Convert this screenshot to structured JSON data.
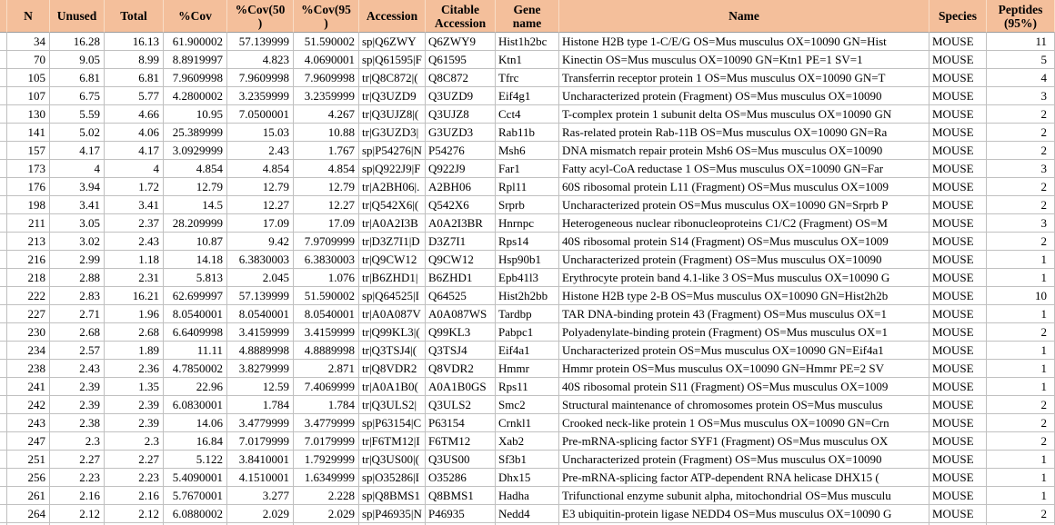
{
  "app": {
    "description_title": "Protein identification results spreadsheet",
    "species_value": "MOUSE"
  },
  "colors": {
    "header_bg": "#f4bf9b",
    "grid_line": "#c0c0c0",
    "header_underline": "#9c9c9c",
    "cell_bg": "#ffffff",
    "text": "#000000"
  },
  "table": {
    "columns": [
      {
        "key": "spacer",
        "label": "",
        "align": "left"
      },
      {
        "key": "n",
        "label": "N",
        "align": "right"
      },
      {
        "key": "unused",
        "label": "Unused",
        "align": "right"
      },
      {
        "key": "total",
        "label": "Total",
        "align": "right"
      },
      {
        "key": "cov",
        "label": "%Cov",
        "align": "right"
      },
      {
        "key": "cov50",
        "label": "%Cov(50\n)",
        "align": "right"
      },
      {
        "key": "cov95",
        "label": "%Cov(95\n)",
        "align": "right"
      },
      {
        "key": "accession",
        "label": "Accession",
        "align": "left"
      },
      {
        "key": "citable",
        "label": "Citable\nAccession",
        "align": "left"
      },
      {
        "key": "gene",
        "label": "Gene\nname",
        "align": "left"
      },
      {
        "key": "name",
        "label": "Name",
        "align": "left"
      },
      {
        "key": "species",
        "label": "Species",
        "align": "left"
      },
      {
        "key": "peptides",
        "label": "Peptides\n(95%)",
        "align": "right"
      }
    ],
    "rows": [
      {
        "n": "34",
        "unused": "16.28",
        "total": "16.13",
        "cov": "61.900002",
        "cov50": "57.139999",
        "cov95": "51.590002",
        "accession": "sp|Q6ZWY",
        "citable": "Q6ZWY9",
        "gene": "Hist1h2bc",
        "name": "Histone H2B type 1-C/E/G OS=Mus musculus OX=10090 GN=Hist",
        "species": "MOUSE",
        "peptides": "11"
      },
      {
        "n": "70",
        "unused": "9.05",
        "total": "8.99",
        "cov": "8.8919997",
        "cov50": "4.823",
        "cov95": "4.0690001",
        "accession": "sp|Q61595|F",
        "citable": "Q61595",
        "gene": "Ktn1",
        "name": "Kinectin OS=Mus musculus OX=10090 GN=Ktn1 PE=1 SV=1",
        "species": "MOUSE",
        "peptides": "5"
      },
      {
        "n": "105",
        "unused": "6.81",
        "total": "6.81",
        "cov": "7.9609998",
        "cov50": "7.9609998",
        "cov95": "7.9609998",
        "accession": "tr|Q8C872|(",
        "citable": "Q8C872",
        "gene": "Tfrc",
        "name": "Transferrin receptor protein 1 OS=Mus musculus OX=10090 GN=T",
        "species": "MOUSE",
        "peptides": "4"
      },
      {
        "n": "107",
        "unused": "6.75",
        "total": "5.77",
        "cov": "4.2800002",
        "cov50": "3.2359999",
        "cov95": "3.2359999",
        "accession": "tr|Q3UZD9",
        "citable": "Q3UZD9",
        "gene": "Eif4g1",
        "name": "Uncharacterized protein (Fragment) OS=Mus musculus OX=10090",
        "species": "MOUSE",
        "peptides": "3"
      },
      {
        "n": "130",
        "unused": "5.59",
        "total": "4.66",
        "cov": "10.95",
        "cov50": "7.0500001",
        "cov95": "4.267",
        "accession": "tr|Q3UJZ8|(",
        "citable": "Q3UJZ8",
        "gene": "Cct4",
        "name": "T-complex protein 1 subunit delta OS=Mus musculus OX=10090 GN",
        "species": "MOUSE",
        "peptides": "2"
      },
      {
        "n": "141",
        "unused": "5.02",
        "total": "4.06",
        "cov": "25.389999",
        "cov50": "15.03",
        "cov95": "10.88",
        "accession": "tr|G3UZD3|",
        "citable": "G3UZD3",
        "gene": "Rab11b",
        "name": "Ras-related protein Rab-11B OS=Mus musculus OX=10090 GN=Ra",
        "species": "MOUSE",
        "peptides": "2"
      },
      {
        "n": "157",
        "unused": "4.17",
        "total": "4.17",
        "cov": "3.0929999",
        "cov50": "2.43",
        "cov95": "1.767",
        "accession": "sp|P54276|N",
        "citable": "P54276",
        "gene": "Msh6",
        "name": "DNA mismatch repair protein Msh6 OS=Mus musculus OX=10090",
        "species": "MOUSE",
        "peptides": "2"
      },
      {
        "n": "173",
        "unused": "4",
        "total": "4",
        "cov": "4.854",
        "cov50": "4.854",
        "cov95": "4.854",
        "accession": "sp|Q922J9|F",
        "citable": "Q922J9",
        "gene": "Far1",
        "name": "Fatty acyl-CoA reductase 1 OS=Mus musculus OX=10090 GN=Far",
        "species": "MOUSE",
        "peptides": "3"
      },
      {
        "n": "176",
        "unused": "3.94",
        "total": "1.72",
        "cov": "12.79",
        "cov50": "12.79",
        "cov95": "12.79",
        "accession": "tr|A2BH06|.",
        "citable": "A2BH06",
        "gene": "Rpl11",
        "name": "60S ribosomal protein L11 (Fragment) OS=Mus musculus OX=1009",
        "species": "MOUSE",
        "peptides": "2"
      },
      {
        "n": "198",
        "unused": "3.41",
        "total": "3.41",
        "cov": "14.5",
        "cov50": "12.27",
        "cov95": "12.27",
        "accession": "tr|Q542X6|(",
        "citable": "Q542X6",
        "gene": "Srprb",
        "name": "Uncharacterized protein OS=Mus musculus OX=10090 GN=Srprb P",
        "species": "MOUSE",
        "peptides": "2"
      },
      {
        "n": "211",
        "unused": "3.05",
        "total": "2.37",
        "cov": "28.209999",
        "cov50": "17.09",
        "cov95": "17.09",
        "accession": "tr|A0A2I3B",
        "citable": "A0A2I3BR",
        "gene": "Hnrnpc",
        "name": "Heterogeneous nuclear ribonucleoproteins C1/C2 (Fragment) OS=M",
        "species": "MOUSE",
        "peptides": "3"
      },
      {
        "n": "213",
        "unused": "3.02",
        "total": "2.43",
        "cov": "10.87",
        "cov50": "9.42",
        "cov95": "7.9709999",
        "accession": "tr|D3Z7I1|D",
        "citable": "D3Z7I1",
        "gene": "Rps14",
        "name": "40S ribosomal protein S14 (Fragment) OS=Mus musculus OX=1009",
        "species": "MOUSE",
        "peptides": "2"
      },
      {
        "n": "216",
        "unused": "2.99",
        "total": "1.18",
        "cov": "14.18",
        "cov50": "6.3830003",
        "cov95": "6.3830003",
        "accession": "tr|Q9CW12",
        "citable": "Q9CW12",
        "gene": "Hsp90b1",
        "name": "Uncharacterized protein (Fragment) OS=Mus musculus OX=10090",
        "species": "MOUSE",
        "peptides": "1"
      },
      {
        "n": "218",
        "unused": "2.88",
        "total": "2.31",
        "cov": "5.813",
        "cov50": "2.045",
        "cov95": "1.076",
        "accession": "tr|B6ZHD1|",
        "citable": "B6ZHD1",
        "gene": "Epb41l3",
        "name": "Erythrocyte protein band 4.1-like 3 OS=Mus musculus OX=10090 G",
        "species": "MOUSE",
        "peptides": "1"
      },
      {
        "n": "222",
        "unused": "2.83",
        "total": "16.21",
        "cov": "62.699997",
        "cov50": "57.139999",
        "cov95": "51.590002",
        "accession": "sp|Q64525|I",
        "citable": "Q64525",
        "gene": "Hist2h2bb",
        "name": "Histone H2B type 2-B OS=Mus musculus OX=10090 GN=Hist2h2b",
        "species": "MOUSE",
        "peptides": "10"
      },
      {
        "n": "227",
        "unused": "2.71",
        "total": "1.96",
        "cov": "8.0540001",
        "cov50": "8.0540001",
        "cov95": "8.0540001",
        "accession": "tr|A0A087V",
        "citable": "A0A087WS",
        "gene": "Tardbp",
        "name": "TAR DNA-binding protein 43 (Fragment) OS=Mus musculus OX=1",
        "species": "MOUSE",
        "peptides": "1"
      },
      {
        "n": "230",
        "unused": "2.68",
        "total": "2.68",
        "cov": "6.6409998",
        "cov50": "3.4159999",
        "cov95": "3.4159999",
        "accession": "tr|Q99KL3|(",
        "citable": "Q99KL3",
        "gene": "Pabpc1",
        "name": "Polyadenylate-binding protein (Fragment) OS=Mus musculus OX=1",
        "species": "MOUSE",
        "peptides": "2"
      },
      {
        "n": "234",
        "unused": "2.57",
        "total": "1.89",
        "cov": "11.11",
        "cov50": "4.8889998",
        "cov95": "4.8889998",
        "accession": "tr|Q3TSJ4|(",
        "citable": "Q3TSJ4",
        "gene": "Eif4a1",
        "name": "Uncharacterized protein OS=Mus musculus OX=10090 GN=Eif4a1",
        "species": "MOUSE",
        "peptides": "1"
      },
      {
        "n": "238",
        "unused": "2.43",
        "total": "2.36",
        "cov": "4.7850002",
        "cov50": "3.8279999",
        "cov95": "2.871",
        "accession": "tr|Q8VDR2",
        "citable": "Q8VDR2",
        "gene": "Hmmr",
        "name": "Hmmr protein OS=Mus musculus OX=10090 GN=Hmmr PE=2 SV",
        "species": "MOUSE",
        "peptides": "1"
      },
      {
        "n": "241",
        "unused": "2.39",
        "total": "1.35",
        "cov": "22.96",
        "cov50": "12.59",
        "cov95": "7.4069999",
        "accession": "tr|A0A1B0(",
        "citable": "A0A1B0GS",
        "gene": "Rps11",
        "name": "40S ribosomal protein S11 (Fragment) OS=Mus musculus OX=1009",
        "species": "MOUSE",
        "peptides": "1"
      },
      {
        "n": "242",
        "unused": "2.39",
        "total": "2.39",
        "cov": "6.0830001",
        "cov50": "1.784",
        "cov95": "1.784",
        "accession": "tr|Q3ULS2|",
        "citable": "Q3ULS2",
        "gene": "Smc2",
        "name": "Structural maintenance of chromosomes protein OS=Mus musculus",
        "species": "MOUSE",
        "peptides": "2"
      },
      {
        "n": "243",
        "unused": "2.38",
        "total": "2.39",
        "cov": "14.06",
        "cov50": "3.4779999",
        "cov95": "3.4779999",
        "accession": "sp|P63154|C",
        "citable": "P63154",
        "gene": "Crnkl1",
        "name": "Crooked neck-like protein 1 OS=Mus musculus OX=10090 GN=Crn",
        "species": "MOUSE",
        "peptides": "2"
      },
      {
        "n": "247",
        "unused": "2.3",
        "total": "2.3",
        "cov": "16.84",
        "cov50": "7.0179999",
        "cov95": "7.0179999",
        "accession": "tr|F6TM12|I",
        "citable": "F6TM12",
        "gene": "Xab2",
        "name": "Pre-mRNA-splicing factor SYF1 (Fragment) OS=Mus musculus OX",
        "species": "MOUSE",
        "peptides": "2"
      },
      {
        "n": "251",
        "unused": "2.27",
        "total": "2.27",
        "cov": "5.122",
        "cov50": "3.8410001",
        "cov95": "1.7929999",
        "accession": "tr|Q3US00|(",
        "citable": "Q3US00",
        "gene": "Sf3b1",
        "name": "Uncharacterized protein (Fragment) OS=Mus musculus OX=10090",
        "species": "MOUSE",
        "peptides": "1"
      },
      {
        "n": "256",
        "unused": "2.23",
        "total": "2.23",
        "cov": "5.4090001",
        "cov50": "4.1510001",
        "cov95": "1.6349999",
        "accession": "sp|O35286|I",
        "citable": "O35286",
        "gene": "Dhx15",
        "name": "Pre-mRNA-splicing factor ATP-dependent RNA helicase DHX15 (",
        "species": "MOUSE",
        "peptides": "1"
      },
      {
        "n": "261",
        "unused": "2.16",
        "total": "2.16",
        "cov": "5.7670001",
        "cov50": "3.277",
        "cov95": "2.228",
        "accession": "sp|Q8BMS1",
        "citable": "Q8BMS1",
        "gene": "Hadha",
        "name": "Trifunctional enzyme subunit alpha, mitochondrial OS=Mus musculu",
        "species": "MOUSE",
        "peptides": "1"
      },
      {
        "n": "264",
        "unused": "2.12",
        "total": "2.12",
        "cov": "6.0880002",
        "cov50": "2.029",
        "cov95": "2.029",
        "accession": "sp|P46935|N",
        "citable": "P46935",
        "gene": "Nedd4",
        "name": "E3 ubiquitin-protein ligase NEDD4 OS=Mus musculus OX=10090 G",
        "species": "MOUSE",
        "peptides": "2"
      }
    ]
  }
}
